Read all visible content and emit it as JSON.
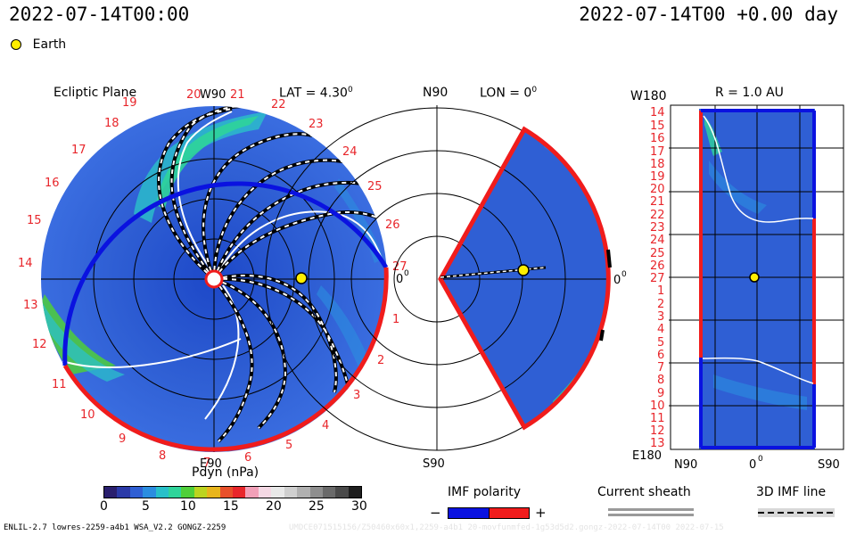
{
  "header": {
    "left_time": "2022-07-14T00:00",
    "right_time": "2022-07-14T00 +0.00 day",
    "legend_earth": "Earth"
  },
  "panel_ecliptic": {
    "title": "Ecliptic Plane",
    "lat_label": "LAT = 4.30",
    "lat_sup": "0",
    "top_label": "W90",
    "bottom_label": "E90",
    "right_label": "0",
    "right_sup": "0",
    "sectors": [
      "19",
      "20",
      "21",
      "22",
      "23",
      "24",
      "25",
      "26",
      "27",
      "1",
      "2",
      "3",
      "4",
      "5",
      "6",
      "7",
      "8",
      "9",
      "10",
      "11",
      "12",
      "13",
      "14",
      "15",
      "16",
      "17",
      "18"
    ]
  },
  "panel_meridional": {
    "top_left": "N90",
    "title": "LON = 0",
    "title_sup": "0",
    "bottom_left": "S90",
    "right_label": "0",
    "right_sup": "0"
  },
  "panel_radial": {
    "title": "R = 1.0 AU",
    "top_left": "W180",
    "bottom_left": "E180",
    "bottom_axis": [
      "N90",
      "0",
      "S90"
    ],
    "bottom_axis_sup": "0",
    "rows": [
      "14",
      "15",
      "16",
      "17",
      "18",
      "19",
      "20",
      "21",
      "22",
      "23",
      "24",
      "25",
      "26",
      "27",
      "1",
      "2",
      "3",
      "4",
      "5",
      "6",
      "7",
      "8",
      "9",
      "10",
      "11",
      "12",
      "13"
    ]
  },
  "colorbar": {
    "label": "Pdyn (nPa)",
    "ticks": [
      "0",
      "5",
      "10",
      "15",
      "20",
      "25",
      "30"
    ],
    "colors": [
      "#2a1f6e",
      "#2b3aa8",
      "#2f5fd4",
      "#2b8de0",
      "#28c0c9",
      "#2fd49a",
      "#4fcf3a",
      "#bcd41f",
      "#e8b51c",
      "#e8502a",
      "#e8262b",
      "#f2a0b8",
      "#f4d8e4",
      "#e8e8e8",
      "#cfcfcf",
      "#b0b0b0",
      "#8e8e8e",
      "#6a6a6a",
      "#4a4a4a",
      "#1e1e1e"
    ]
  },
  "imf_polarity": {
    "title": "IMF polarity",
    "minus": "−",
    "plus": "+",
    "neg_color": "#0a12e0",
    "pos_color": "#f01c1c"
  },
  "current_sheath": {
    "title": "Current sheath"
  },
  "imf_line": {
    "title": "3D IMF line"
  },
  "footer": {
    "left": "ENLIL-2.7 lowres-2259-a4b1 WSA_V2.2 GONGZ-2259",
    "right": "UMDCE071515156/Z50460x60x1,2259-a4b1 20-movfunmfed-1g53d5d2.gongz-2022-07-14T00 2022-07-15"
  }
}
